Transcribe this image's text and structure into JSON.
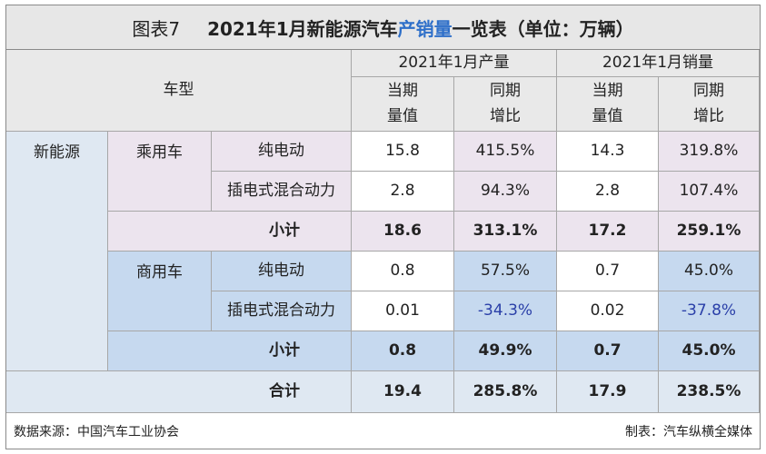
{
  "title": {
    "prefix": "图表7",
    "part1": "2021年1月新能源汽车",
    "highlight": "产销量",
    "part2": "一览表（单位：万辆）"
  },
  "header": {
    "vehicle_type": "车型",
    "production_group": "2021年1月产量",
    "sales_group": "2021年1月销量",
    "current_value": "当期\n量值",
    "yoy": "同期\n增比"
  },
  "rows": {
    "category": "新能源",
    "passenger": "乘用车",
    "commercial": "商用车",
    "bev": "纯电动",
    "phev": "插电式混合动力",
    "subtotal": "小计",
    "total": "合计"
  },
  "data": {
    "passenger_bev": [
      "15.8",
      "415.5%",
      "14.3",
      "319.8%"
    ],
    "passenger_phev": [
      "2.8",
      "94.3%",
      "2.8",
      "107.4%"
    ],
    "passenger_subtotal": [
      "18.6",
      "313.1%",
      "17.2",
      "259.1%"
    ],
    "commercial_bev": [
      "0.8",
      "57.5%",
      "0.7",
      "45.0%"
    ],
    "commercial_phev": [
      "0.01",
      "-34.3%",
      "0.02",
      "-37.8%"
    ],
    "commercial_subtotal": [
      "0.8",
      "49.9%",
      "0.7",
      "45.0%"
    ],
    "total": [
      "19.4",
      "285.8%",
      "17.9",
      "238.5%"
    ]
  },
  "footer": {
    "source": "数据来源：中国汽车工业协会",
    "producer": "制表：汽车纵横全媒体"
  },
  "colors": {
    "highlight": "#2e6fc9",
    "negative": "#2a3fa8",
    "passenger_bg": "#ece4ee",
    "commercial_bg": "#c6d9ef"
  }
}
